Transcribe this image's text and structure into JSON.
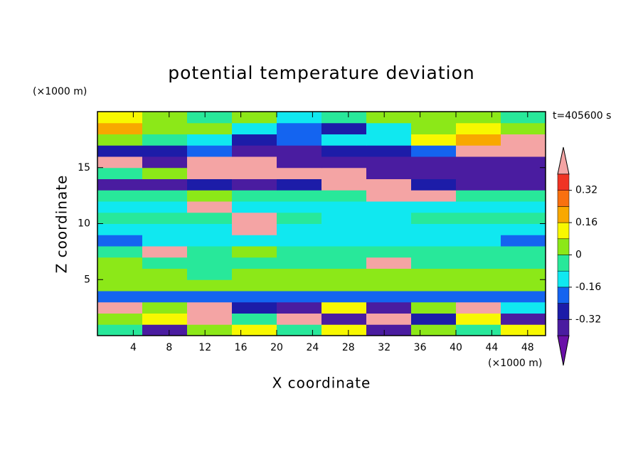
{
  "chart_data": {
    "type": "contour",
    "title": "potential temperature deviation",
    "x_label": "X coordinate",
    "y_label": "Z coordinate",
    "x_unit": "(×1000 m)",
    "y_unit": "(×1000 m)",
    "time_label": "t=405600 s",
    "xlim": [
      0,
      50
    ],
    "ylim": [
      0,
      20
    ],
    "xticks": [
      4,
      8,
      12,
      16,
      20,
      24,
      28,
      32,
      36,
      40,
      44,
      48
    ],
    "yticks": [
      5,
      10,
      15
    ],
    "x": [
      2.5,
      7.5,
      12.5,
      17.5,
      22.5,
      27.5,
      32.5,
      37.5,
      42.5,
      47.5
    ],
    "y": [
      0.5,
      1.5,
      2.5,
      3.5,
      4.5,
      5.5,
      6.5,
      7.5,
      8.5,
      9.5,
      10.5,
      11.5,
      12.5,
      13.5,
      14.5,
      15.5,
      16.5,
      17.5,
      18.5,
      19.5
    ],
    "z": [
      [
        -0.04,
        -0.36,
        0.04,
        0.12,
        -0.04,
        0.12,
        -0.36,
        0.04,
        -0.04,
        0.12
      ],
      [
        0.04,
        0.12,
        0.5,
        -0.04,
        0.5,
        -0.36,
        0.5,
        -0.28,
        0.12,
        -0.36
      ],
      [
        0.5,
        0.04,
        0.5,
        -0.28,
        -0.36,
        0.12,
        -0.36,
        0.04,
        0.5,
        -0.12
      ],
      [
        -0.2,
        -0.2,
        -0.2,
        -0.2,
        -0.2,
        -0.2,
        -0.2,
        -0.2,
        -0.2,
        -0.2
      ],
      [
        0.04,
        0.04,
        0.04,
        0.04,
        0.04,
        0.04,
        0.04,
        0.04,
        0.04,
        0.04
      ],
      [
        0.04,
        0.04,
        -0.04,
        0.04,
        0.04,
        0.04,
        0.04,
        0.04,
        0.04,
        0.04
      ],
      [
        0.04,
        -0.04,
        -0.04,
        -0.04,
        -0.04,
        -0.04,
        0.5,
        -0.04,
        -0.04,
        -0.04
      ],
      [
        -0.04,
        0.5,
        -0.04,
        0.04,
        -0.04,
        -0.04,
        -0.04,
        -0.04,
        -0.04,
        -0.04
      ],
      [
        -0.2,
        -0.12,
        -0.12,
        -0.12,
        -0.12,
        -0.12,
        -0.12,
        -0.12,
        -0.12,
        -0.2
      ],
      [
        -0.12,
        -0.12,
        -0.12,
        0.5,
        -0.12,
        -0.12,
        -0.12,
        -0.12,
        -0.12,
        -0.12
      ],
      [
        -0.04,
        -0.04,
        -0.04,
        0.5,
        -0.04,
        -0.12,
        -0.12,
        -0.04,
        -0.04,
        -0.04
      ],
      [
        -0.12,
        -0.12,
        0.5,
        -0.12,
        -0.12,
        -0.12,
        -0.12,
        -0.12,
        -0.12,
        -0.12
      ],
      [
        -0.04,
        -0.04,
        0.04,
        -0.04,
        -0.04,
        -0.04,
        0.5,
        0.5,
        -0.04,
        -0.04
      ],
      [
        -0.36,
        -0.36,
        -0.28,
        -0.36,
        -0.28,
        0.5,
        0.5,
        -0.28,
        -0.36,
        -0.36
      ],
      [
        -0.04,
        0.04,
        0.5,
        0.5,
        0.5,
        0.5,
        -0.36,
        -0.36,
        -0.36,
        -0.36
      ],
      [
        0.5,
        -0.36,
        0.5,
        0.5,
        -0.36,
        -0.36,
        -0.36,
        -0.36,
        -0.36,
        -0.36
      ],
      [
        -0.28,
        -0.28,
        -0.2,
        -0.36,
        -0.36,
        -0.28,
        -0.28,
        -0.2,
        0.5,
        0.5
      ],
      [
        0.04,
        -0.04,
        -0.12,
        -0.28,
        -0.2,
        -0.12,
        -0.12,
        0.12,
        0.2,
        0.5
      ],
      [
        0.2,
        0.04,
        0.04,
        -0.12,
        -0.2,
        -0.28,
        -0.12,
        0.04,
        0.12,
        0.04
      ],
      [
        0.12,
        0.04,
        -0.04,
        0.04,
        -0.12,
        -0.04,
        0.04,
        0.04,
        0.04,
        -0.04
      ]
    ],
    "levels": [
      -0.4,
      -0.32,
      -0.24,
      -0.16,
      -0.08,
      0,
      0.08,
      0.16,
      0.24,
      0.32,
      0.4
    ],
    "colors": [
      "#6a10a8",
      "#4a1ca0",
      "#1c1ca8",
      "#1464f0",
      "#10e8f0",
      "#28e89a",
      "#8ce818",
      "#f8f800",
      "#f8a800",
      "#f87010",
      "#f03424",
      "#f4a4a4"
    ],
    "colorbar_ticks": [
      -0.32,
      -0.16,
      0,
      0.16,
      0.32
    ]
  }
}
